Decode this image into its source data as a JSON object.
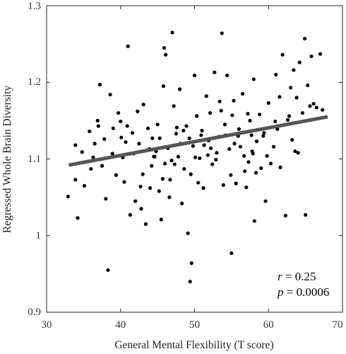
{
  "chart_data": {
    "type": "scatter",
    "xlabel": "General Mental Flexibility (T score)",
    "ylabel": "Regressed Whole Brain Diversity",
    "xlim": [
      30,
      70
    ],
    "ylim": [
      0.9,
      1.3
    ],
    "xticks": [
      "30",
      "40",
      "50",
      "60",
      "70"
    ],
    "yticks": [
      "0.9",
      "1",
      "1.1",
      "1.2",
      "1.3"
    ],
    "grid": false,
    "point_color": "#000000",
    "fit_line": {
      "x": [
        33,
        68
      ],
      "y": [
        1.092,
        1.155
      ],
      "color": "#555555"
    },
    "annotation": {
      "r_symbol": "r",
      "r_text": " = 0.25",
      "p_symbol": "p",
      "p_text": " = 0.0006"
    },
    "points": [
      [
        33.9,
        1.118
      ],
      [
        34.8,
        1.109
      ],
      [
        33.9,
        1.073
      ],
      [
        32.9,
        1.051
      ],
      [
        35.1,
        1.065
      ],
      [
        36.0,
        1.087
      ],
      [
        36.5,
        1.12
      ],
      [
        36.9,
        1.15
      ],
      [
        37.0,
        1.143
      ],
      [
        37.2,
        1.197
      ],
      [
        37.8,
        1.126
      ],
      [
        38.0,
        1.048
      ],
      [
        38.3,
        0.955
      ],
      [
        38.6,
        1.184
      ],
      [
        39.4,
        1.079
      ],
      [
        39.7,
        1.16
      ],
      [
        40.0,
        1.149
      ],
      [
        40.1,
        1.128
      ],
      [
        40.3,
        1.102
      ],
      [
        40.5,
        1.07
      ],
      [
        40.9,
        1.143
      ],
      [
        41.0,
        1.247
      ],
      [
        41.3,
        1.027
      ],
      [
        41.6,
        1.134
      ],
      [
        42.0,
        1.045
      ],
      [
        42.3,
        1.162
      ],
      [
        42.5,
        1.12
      ],
      [
        42.8,
        1.035
      ],
      [
        43.0,
        1.08
      ],
      [
        43.4,
        1.015
      ],
      [
        43.7,
        1.14
      ],
      [
        43.9,
        1.113
      ],
      [
        44.0,
        1.062
      ],
      [
        44.2,
        1.091
      ],
      [
        44.5,
        1.103
      ],
      [
        44.8,
        1.11
      ],
      [
        45.0,
        1.145
      ],
      [
        45.3,
        1.127
      ],
      [
        45.5,
        1.021
      ],
      [
        45.8,
        1.195
      ],
      [
        45.9,
        1.245
      ],
      [
        46.1,
        1.236
      ],
      [
        46.4,
        1.114
      ],
      [
        46.6,
        1.05
      ],
      [
        46.9,
        1.098
      ],
      [
        47.0,
        1.265
      ],
      [
        47.2,
        1.169
      ],
      [
        47.5,
        1.133
      ],
      [
        47.8,
        1.103
      ],
      [
        48.0,
        1.191
      ],
      [
        48.3,
        1.042
      ],
      [
        48.6,
        1.087
      ],
      [
        48.9,
        1.143
      ],
      [
        49.1,
        1.003
      ],
      [
        49.4,
        0.94
      ],
      [
        49.6,
        0.964
      ],
      [
        49.8,
        1.117
      ],
      [
        50.0,
        1.209
      ],
      [
        50.3,
        1.156
      ],
      [
        50.5,
        1.069
      ],
      [
        50.7,
        1.101
      ],
      [
        51.0,
        1.137
      ],
      [
        51.3,
        1.118
      ],
      [
        51.6,
        1.182
      ],
      [
        51.9,
        1.124
      ],
      [
        52.1,
        1.16
      ],
      [
        52.4,
        1.093
      ],
      [
        52.7,
        1.213
      ],
      [
        53.0,
        1.108
      ],
      [
        53.4,
        1.175
      ],
      [
        53.7,
        1.264
      ],
      [
        53.9,
        1.066
      ],
      [
        54.1,
        1.145
      ],
      [
        54.4,
        1.209
      ],
      [
        54.7,
        1.113
      ],
      [
        55.0,
        0.977
      ],
      [
        55.3,
        1.176
      ],
      [
        55.6,
        1.068
      ],
      [
        55.9,
        1.13
      ],
      [
        56.2,
        1.116
      ],
      [
        56.5,
        1.185
      ],
      [
        56.7,
        1.104
      ],
      [
        57.0,
        1.063
      ],
      [
        57.2,
        1.159
      ],
      [
        57.5,
        1.15
      ],
      [
        57.8,
        1.11
      ],
      [
        58.0,
        1.204
      ],
      [
        58.1,
        1.019
      ],
      [
        58.3,
        1.082
      ],
      [
        58.6,
        1.138
      ],
      [
        59.0,
        1.088
      ],
      [
        59.3,
        1.13
      ],
      [
        59.6,
        1.045
      ],
      [
        60.0,
        1.173
      ],
      [
        60.3,
        1.094
      ],
      [
        60.7,
        1.116
      ],
      [
        61.0,
        1.21
      ],
      [
        61.5,
        1.181
      ],
      [
        61.9,
        1.236
      ],
      [
        62.3,
        1.026
      ],
      [
        62.6,
        1.151
      ],
      [
        63.0,
        1.193
      ],
      [
        63.4,
        1.216
      ],
      [
        63.8,
        1.18
      ],
      [
        64.2,
        1.226
      ],
      [
        64.6,
        1.16
      ],
      [
        64.9,
        1.257
      ],
      [
        65.0,
        1.027
      ],
      [
        65.3,
        1.196
      ],
      [
        65.8,
        1.234
      ],
      [
        66.1,
        1.172
      ],
      [
        66.5,
        1.167
      ],
      [
        67.0,
        1.237
      ],
      [
        67.3,
        1.164
      ],
      [
        44.3,
        1.127
      ],
      [
        46.0,
        1.094
      ],
      [
        47.6,
        1.141
      ],
      [
        49.5,
        1.08
      ],
      [
        51.2,
        1.062
      ],
      [
        52.9,
        1.099
      ],
      [
        54.2,
        1.131
      ],
      [
        56.0,
        1.139
      ],
      [
        57.9,
        1.107
      ],
      [
        59.8,
        1.104
      ],
      [
        61.2,
        1.139
      ],
      [
        63.2,
        1.125
      ],
      [
        64.0,
        1.108
      ],
      [
        36.3,
        1.102
      ],
      [
        38.9,
        1.107
      ],
      [
        41.8,
        1.107
      ],
      [
        43.1,
        1.171
      ],
      [
        45.7,
        1.074
      ],
      [
        48.5,
        1.137
      ],
      [
        50.9,
        1.131
      ],
      [
        53.3,
        1.129
      ],
      [
        55.4,
        1.12
      ],
      [
        57.3,
        1.096
      ],
      [
        58.8,
        1.158
      ],
      [
        60.9,
        1.149
      ],
      [
        62.8,
        1.156
      ],
      [
        34.2,
        1.023
      ],
      [
        35.8,
        1.136
      ],
      [
        39.0,
        1.14
      ],
      [
        42.7,
        1.064
      ],
      [
        44.6,
        1.103
      ],
      [
        47.3,
        1.093
      ],
      [
        49.3,
        1.127
      ],
      [
        51.8,
        1.105
      ],
      [
        54.9,
        1.079
      ],
      [
        56.8,
        1.084
      ],
      [
        59.4,
        1.134
      ],
      [
        63.6,
        1.11
      ],
      [
        65.6,
        1.169
      ],
      [
        37.5,
        1.091
      ],
      [
        40.7,
        1.122
      ],
      [
        45.2,
        1.058
      ],
      [
        48.1,
        1.12
      ],
      [
        52.2,
        1.114
      ],
      [
        55.1,
        1.157
      ],
      [
        58.4,
        1.123
      ],
      [
        61.6,
        1.089
      ],
      [
        46.7,
        1.073
      ],
      [
        50.1,
        1.102
      ],
      [
        53.6,
        1.163
      ],
      [
        57.7,
        1.131
      ]
    ]
  }
}
